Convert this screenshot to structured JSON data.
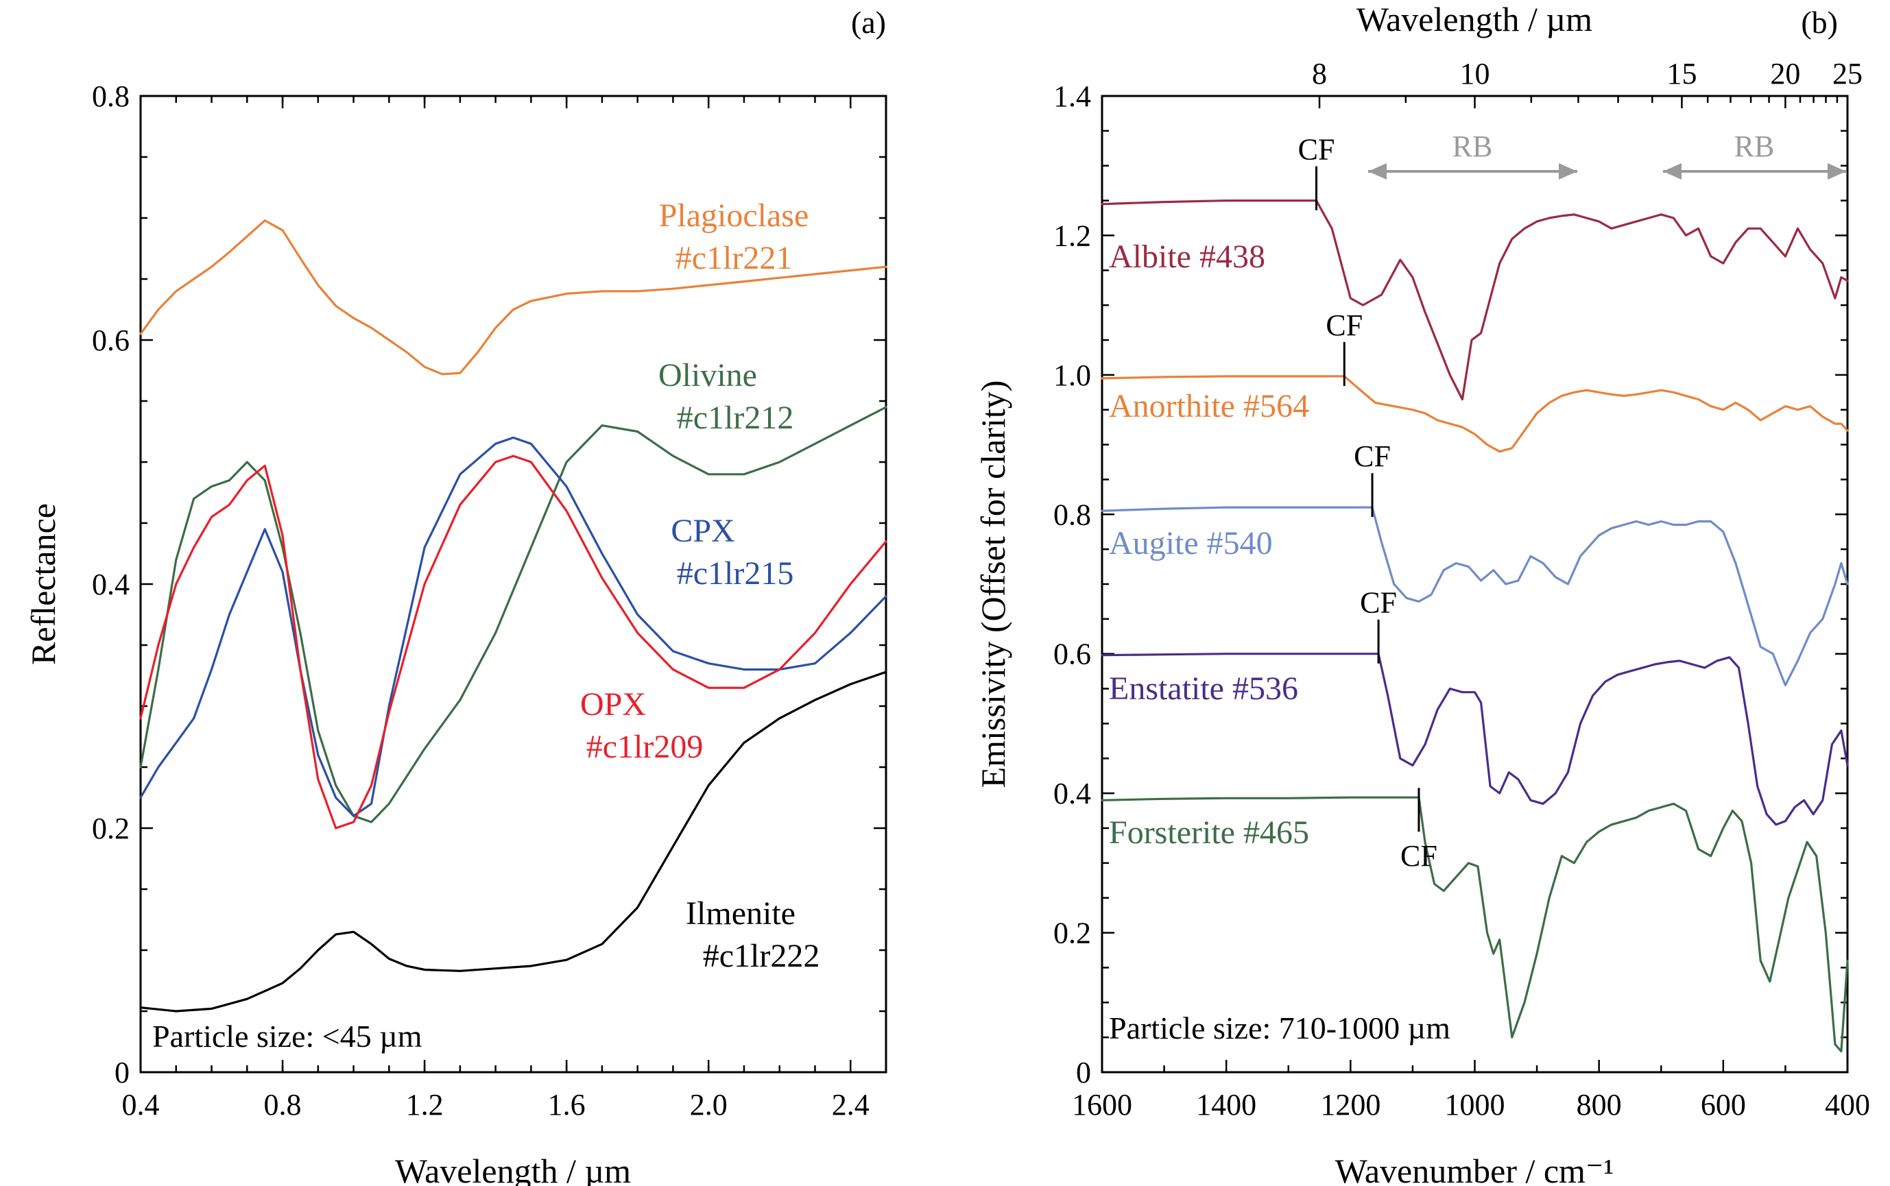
{
  "chart_data": [
    {
      "panel": "(a)",
      "type": "line",
      "xlabel": "Wavelength / µm",
      "ylabel": "Reflectance",
      "xlim": [
        0.4,
        2.5
      ],
      "ylim": [
        0,
        0.8
      ],
      "xticks": [
        0.4,
        0.8,
        1.2,
        1.6,
        2.0,
        2.4
      ],
      "xticklabels": [
        "0.4",
        "0.8",
        "1.2",
        "1.6",
        "2.0",
        "2.4"
      ],
      "yticks": [
        0,
        0.2,
        0.4,
        0.6,
        0.8
      ],
      "yticklabels": [
        "0",
        "0.2",
        "0.4",
        "0.6",
        "0.8"
      ],
      "annotation": "Particle size: <45 µm",
      "series": [
        {
          "name": "Plagioclase",
          "id": "#c1lr221",
          "color": "#e8823a",
          "x": [
            0.4,
            0.45,
            0.5,
            0.55,
            0.6,
            0.65,
            0.7,
            0.75,
            0.8,
            0.85,
            0.9,
            0.95,
            1.0,
            1.05,
            1.1,
            1.15,
            1.2,
            1.25,
            1.3,
            1.35,
            1.4,
            1.45,
            1.5,
            1.6,
            1.7,
            1.8,
            1.9,
            2.0,
            2.1,
            2.2,
            2.3,
            2.4,
            2.5
          ],
          "y": [
            0.605,
            0.625,
            0.64,
            0.65,
            0.66,
            0.672,
            0.685,
            0.698,
            0.69,
            0.667,
            0.645,
            0.628,
            0.618,
            0.61,
            0.6,
            0.59,
            0.578,
            0.572,
            0.573,
            0.59,
            0.61,
            0.625,
            0.632,
            0.638,
            0.64,
            0.64,
            0.642,
            0.645,
            0.648,
            0.651,
            0.654,
            0.657,
            0.66
          ]
        },
        {
          "name": "Olivine",
          "id": "#c1lr212",
          "color": "#3c6e46",
          "x": [
            0.4,
            0.45,
            0.5,
            0.55,
            0.6,
            0.65,
            0.7,
            0.75,
            0.8,
            0.85,
            0.9,
            0.95,
            1.0,
            1.05,
            1.1,
            1.2,
            1.3,
            1.4,
            1.5,
            1.6,
            1.7,
            1.8,
            1.9,
            2.0,
            2.1,
            2.2,
            2.3,
            2.4,
            2.5
          ],
          "y": [
            0.25,
            0.33,
            0.42,
            0.47,
            0.48,
            0.485,
            0.5,
            0.485,
            0.43,
            0.36,
            0.28,
            0.235,
            0.21,
            0.205,
            0.22,
            0.265,
            0.305,
            0.36,
            0.43,
            0.5,
            0.53,
            0.525,
            0.505,
            0.49,
            0.49,
            0.5,
            0.515,
            0.53,
            0.545
          ]
        },
        {
          "name": "CPX",
          "id": "#c1lr215",
          "color": "#2a50a6",
          "x": [
            0.4,
            0.45,
            0.5,
            0.55,
            0.6,
            0.65,
            0.7,
            0.75,
            0.8,
            0.85,
            0.9,
            0.95,
            1.0,
            1.05,
            1.1,
            1.2,
            1.3,
            1.4,
            1.45,
            1.5,
            1.6,
            1.7,
            1.8,
            1.9,
            2.0,
            2.1,
            2.2,
            2.3,
            2.4,
            2.5
          ],
          "y": [
            0.225,
            0.25,
            0.27,
            0.29,
            0.33,
            0.375,
            0.41,
            0.445,
            0.41,
            0.33,
            0.26,
            0.225,
            0.21,
            0.22,
            0.3,
            0.43,
            0.49,
            0.515,
            0.52,
            0.515,
            0.48,
            0.425,
            0.375,
            0.345,
            0.335,
            0.33,
            0.33,
            0.335,
            0.36,
            0.39
          ]
        },
        {
          "name": "OPX",
          "id": "#c1lr209",
          "color": "#e8202a",
          "x": [
            0.4,
            0.45,
            0.5,
            0.55,
            0.6,
            0.65,
            0.7,
            0.75,
            0.8,
            0.85,
            0.9,
            0.95,
            1.0,
            1.05,
            1.1,
            1.2,
            1.3,
            1.4,
            1.45,
            1.5,
            1.6,
            1.7,
            1.8,
            1.9,
            2.0,
            2.1,
            2.2,
            2.3,
            2.4,
            2.5
          ],
          "y": [
            0.29,
            0.35,
            0.4,
            0.43,
            0.455,
            0.465,
            0.485,
            0.497,
            0.44,
            0.33,
            0.24,
            0.2,
            0.205,
            0.235,
            0.295,
            0.4,
            0.465,
            0.5,
            0.505,
            0.5,
            0.46,
            0.405,
            0.36,
            0.33,
            0.315,
            0.315,
            0.33,
            0.36,
            0.4,
            0.435
          ]
        },
        {
          "name": "Ilmenite",
          "id": "#c1lr222",
          "color": "#000000",
          "x": [
            0.4,
            0.5,
            0.6,
            0.7,
            0.8,
            0.85,
            0.9,
            0.95,
            1.0,
            1.05,
            1.1,
            1.15,
            1.2,
            1.3,
            1.4,
            1.5,
            1.6,
            1.7,
            1.8,
            1.9,
            2.0,
            2.1,
            2.2,
            2.3,
            2.4,
            2.5
          ],
          "y": [
            0.053,
            0.05,
            0.052,
            0.06,
            0.073,
            0.085,
            0.1,
            0.113,
            0.115,
            0.105,
            0.093,
            0.087,
            0.084,
            0.083,
            0.085,
            0.087,
            0.092,
            0.105,
            0.135,
            0.185,
            0.235,
            0.27,
            0.29,
            0.305,
            0.318,
            0.328
          ]
        }
      ]
    },
    {
      "panel": "(b)",
      "type": "line",
      "xlabel": "Wavenumber / cm⁻¹",
      "top_xlabel": "Wavelength / µm",
      "ylabel": "Emissivity (Offset for clarity)",
      "xlim": [
        1600,
        400
      ],
      "ylim": [
        0,
        1.4
      ],
      "xticks": [
        1600,
        1400,
        1200,
        1000,
        800,
        600,
        400
      ],
      "xticklabels": [
        "1600",
        "1400",
        "1200",
        "1000",
        "800",
        "600",
        "400"
      ],
      "yticks": [
        0,
        0.2,
        0.4,
        0.6,
        0.8,
        1.0,
        1.2,
        1.4
      ],
      "yticklabels": [
        "0",
        "0.2",
        "0.4",
        "0.6",
        "0.8",
        "1.0",
        "1.2",
        "1.4"
      ],
      "top_ticks_um": [
        8,
        10,
        15,
        20,
        25
      ],
      "top_ticklabels": [
        "8",
        "10",
        "15",
        "20",
        "25"
      ],
      "annotation": "Particle size: 710-1000 µm",
      "region_label": "RB",
      "cf_label": "CF",
      "series": [
        {
          "name": "Albite #438",
          "color": "#9a2a45",
          "cf": 1255,
          "x": [
            1600,
            1500,
            1400,
            1300,
            1255,
            1230,
            1200,
            1180,
            1150,
            1120,
            1100,
            1080,
            1060,
            1040,
            1020,
            1005,
            990,
            975,
            960,
            940,
            920,
            900,
            880,
            860,
            840,
            820,
            800,
            780,
            760,
            740,
            720,
            700,
            680,
            660,
            640,
            620,
            600,
            580,
            560,
            540,
            520,
            500,
            480,
            460,
            440,
            420,
            410,
            400
          ],
          "y": [
            1.245,
            1.248,
            1.25,
            1.25,
            1.25,
            1.21,
            1.11,
            1.1,
            1.115,
            1.165,
            1.14,
            1.09,
            1.045,
            1.0,
            0.965,
            1.05,
            1.06,
            1.11,
            1.16,
            1.195,
            1.21,
            1.22,
            1.225,
            1.228,
            1.23,
            1.225,
            1.22,
            1.21,
            1.215,
            1.22,
            1.225,
            1.23,
            1.225,
            1.2,
            1.21,
            1.17,
            1.16,
            1.19,
            1.21,
            1.21,
            1.19,
            1.17,
            1.21,
            1.18,
            1.16,
            1.11,
            1.14,
            1.135
          ]
        },
        {
          "name": "Anorthite #564",
          "color": "#e8823a",
          "cf": 1210,
          "x": [
            1600,
            1500,
            1400,
            1300,
            1210,
            1180,
            1160,
            1130,
            1100,
            1080,
            1060,
            1040,
            1020,
            1000,
            980,
            960,
            940,
            920,
            900,
            880,
            860,
            840,
            820,
            800,
            780,
            760,
            740,
            720,
            700,
            680,
            660,
            640,
            620,
            600,
            580,
            560,
            540,
            520,
            500,
            480,
            460,
            440,
            420,
            410,
            400
          ],
          "y": [
            0.995,
            0.997,
            0.998,
            0.998,
            0.998,
            0.975,
            0.96,
            0.955,
            0.95,
            0.945,
            0.935,
            0.93,
            0.925,
            0.915,
            0.9,
            0.89,
            0.895,
            0.92,
            0.945,
            0.96,
            0.97,
            0.975,
            0.978,
            0.975,
            0.972,
            0.97,
            0.972,
            0.975,
            0.978,
            0.975,
            0.97,
            0.965,
            0.955,
            0.95,
            0.96,
            0.95,
            0.935,
            0.945,
            0.955,
            0.95,
            0.955,
            0.94,
            0.93,
            0.93,
            0.92
          ]
        },
        {
          "name": "Augite #540",
          "color": "#6f8cc8",
          "cf": 1165,
          "x": [
            1600,
            1500,
            1400,
            1300,
            1200,
            1165,
            1150,
            1130,
            1110,
            1090,
            1070,
            1050,
            1030,
            1010,
            990,
            970,
            950,
            930,
            910,
            890,
            870,
            850,
            830,
            800,
            780,
            760,
            740,
            720,
            700,
            680,
            660,
            640,
            620,
            600,
            580,
            560,
            540,
            520,
            500,
            480,
            460,
            440,
            420,
            410,
            400
          ],
          "y": [
            0.805,
            0.808,
            0.81,
            0.81,
            0.81,
            0.81,
            0.76,
            0.7,
            0.68,
            0.675,
            0.685,
            0.72,
            0.73,
            0.725,
            0.705,
            0.72,
            0.7,
            0.705,
            0.74,
            0.73,
            0.71,
            0.7,
            0.74,
            0.77,
            0.78,
            0.785,
            0.79,
            0.785,
            0.79,
            0.785,
            0.785,
            0.79,
            0.79,
            0.775,
            0.73,
            0.67,
            0.61,
            0.6,
            0.555,
            0.59,
            0.63,
            0.65,
            0.7,
            0.73,
            0.7
          ]
        },
        {
          "name": "Enstatite #536",
          "color": "#4a2d8a",
          "cf": 1155,
          "x": [
            1600,
            1500,
            1400,
            1300,
            1200,
            1155,
            1140,
            1120,
            1100,
            1080,
            1060,
            1040,
            1020,
            1000,
            990,
            975,
            960,
            945,
            930,
            910,
            890,
            870,
            850,
            830,
            810,
            790,
            770,
            750,
            730,
            710,
            690,
            670,
            650,
            630,
            610,
            590,
            575,
            560,
            545,
            530,
            515,
            500,
            485,
            470,
            455,
            440,
            425,
            410,
            400
          ],
          "y": [
            0.598,
            0.599,
            0.6,
            0.6,
            0.6,
            0.6,
            0.54,
            0.45,
            0.44,
            0.47,
            0.52,
            0.55,
            0.545,
            0.545,
            0.53,
            0.41,
            0.4,
            0.43,
            0.42,
            0.39,
            0.385,
            0.4,
            0.43,
            0.5,
            0.54,
            0.56,
            0.57,
            0.575,
            0.58,
            0.585,
            0.588,
            0.59,
            0.585,
            0.58,
            0.59,
            0.595,
            0.58,
            0.5,
            0.41,
            0.37,
            0.355,
            0.36,
            0.38,
            0.39,
            0.37,
            0.39,
            0.47,
            0.49,
            0.44
          ]
        },
        {
          "name": "Forsterite #465",
          "color": "#3c6e46",
          "cf": 1090,
          "x": [
            1600,
            1500,
            1400,
            1300,
            1200,
            1090,
            1080,
            1065,
            1050,
            1030,
            1010,
            995,
            980,
            970,
            960,
            950,
            940,
            920,
            900,
            880,
            860,
            840,
            820,
            800,
            780,
            760,
            740,
            720,
            700,
            680,
            660,
            640,
            620,
            600,
            585,
            570,
            555,
            540,
            525,
            510,
            495,
            480,
            465,
            450,
            435,
            420,
            410,
            400
          ],
          "y": [
            0.39,
            0.392,
            0.393,
            0.393,
            0.394,
            0.394,
            0.33,
            0.27,
            0.26,
            0.28,
            0.3,
            0.295,
            0.2,
            0.17,
            0.19,
            0.12,
            0.05,
            0.1,
            0.17,
            0.25,
            0.31,
            0.3,
            0.33,
            0.345,
            0.355,
            0.36,
            0.365,
            0.375,
            0.38,
            0.385,
            0.375,
            0.32,
            0.31,
            0.35,
            0.375,
            0.36,
            0.3,
            0.16,
            0.13,
            0.19,
            0.25,
            0.29,
            0.33,
            0.31,
            0.2,
            0.04,
            0.03,
            0.16
          ]
        }
      ]
    }
  ]
}
